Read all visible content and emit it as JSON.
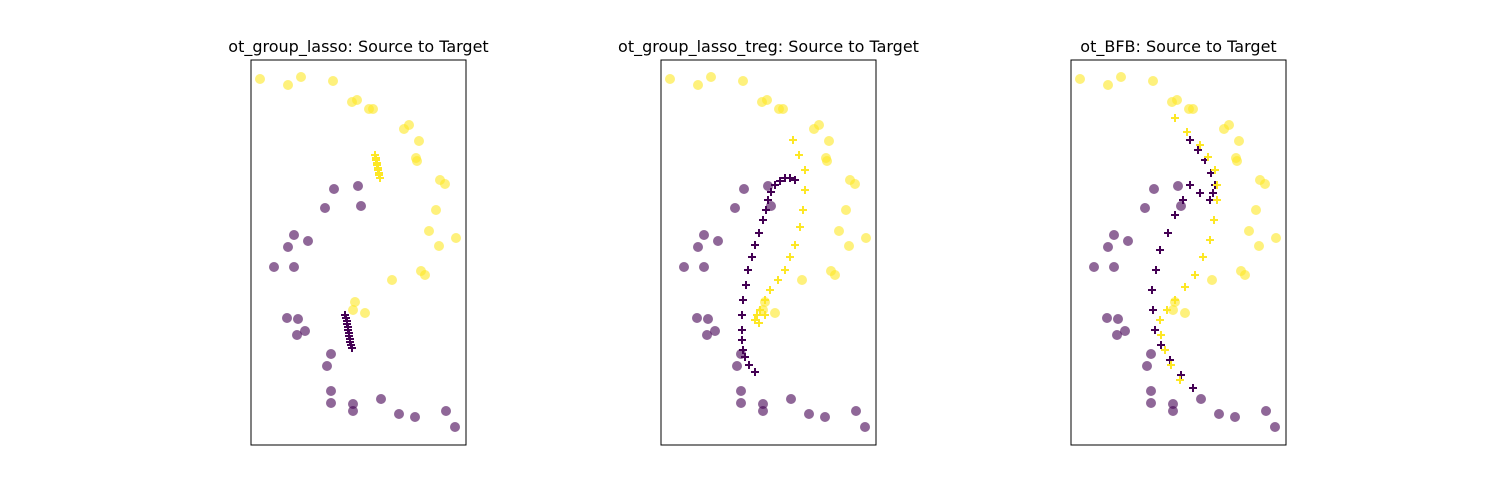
{
  "chart_data": [
    {
      "type": "scatter",
      "title": "ot_group_lasso: Source to Target",
      "xlim": [
        0,
        215
      ],
      "ylim": [
        0,
        385
      ],
      "series": [
        {
          "color": "#440154",
          "marker": "o",
          "alpha": 0.6,
          "x": [
            83,
            74,
            110,
            107,
            43,
            57,
            37,
            23,
            43,
            36,
            47,
            54,
            46,
            80,
            76,
            80,
            80,
            102,
            102,
            130,
            148,
            164,
            195,
            204
          ],
          "values": [
            256,
            237,
            239,
            259,
            210,
            204,
            198,
            178,
            178,
            127,
            126,
            114,
            110,
            91,
            79,
            54,
            42,
            41,
            34,
            46,
            31,
            28,
            34,
            18
          ]
        },
        {
          "color": "#fde725",
          "marker": "o",
          "alpha": 0.6,
          "x": [
            9,
            37,
            50,
            82,
            101,
            106,
            118,
            122,
            153,
            158,
            168,
            165,
            166,
            189,
            194,
            185,
            178,
            205,
            188,
            170,
            174,
            141,
            104,
            102,
            114
          ],
          "values": [
            366,
            360,
            368,
            364,
            343,
            345,
            336,
            336,
            316,
            320,
            304,
            287,
            284,
            265,
            261,
            235,
            214,
            207,
            199,
            174,
            170,
            165,
            143,
            135,
            132
          ]
        },
        {
          "color": "#440154",
          "marker": "+",
          "alpha": 1,
          "x": [
            94,
            95,
            96,
            96,
            97,
            97,
            98,
            98,
            99,
            99,
            100,
            101
          ],
          "values": [
            130,
            127,
            124,
            121,
            118,
            115,
            112,
            109,
            106,
            103,
            100,
            97
          ]
        },
        {
          "color": "#fde725",
          "marker": "+",
          "alpha": 1,
          "x": [
            124,
            125,
            125,
            126,
            126,
            127,
            127,
            128,
            128,
            129
          ],
          "values": [
            290,
            287,
            285,
            282,
            280,
            277,
            275,
            272,
            270,
            267
          ]
        }
      ]
    },
    {
      "type": "scatter",
      "title": "ot_group_lasso_treg: Source to Target",
      "xlim": [
        0,
        215
      ],
      "ylim": [
        0,
        385
      ],
      "series": [
        {
          "color": "#440154",
          "marker": "o",
          "alpha": 0.6,
          "x": [
            83,
            74,
            110,
            107,
            43,
            57,
            37,
            23,
            43,
            36,
            47,
            54,
            46,
            80,
            76,
            80,
            80,
            102,
            102,
            130,
            148,
            164,
            195,
            204
          ],
          "values": [
            256,
            237,
            239,
            259,
            210,
            204,
            198,
            178,
            178,
            127,
            126,
            114,
            110,
            91,
            79,
            54,
            42,
            41,
            34,
            46,
            31,
            28,
            34,
            18
          ]
        },
        {
          "color": "#fde725",
          "marker": "o",
          "alpha": 0.6,
          "x": [
            9,
            37,
            50,
            82,
            101,
            106,
            118,
            122,
            153,
            158,
            168,
            165,
            166,
            189,
            194,
            185,
            178,
            205,
            188,
            170,
            174,
            141,
            104,
            102,
            114
          ],
          "values": [
            366,
            360,
            368,
            364,
            343,
            345,
            336,
            336,
            316,
            320,
            304,
            287,
            284,
            265,
            261,
            235,
            214,
            207,
            199,
            174,
            170,
            165,
            143,
            135,
            132
          ]
        },
        {
          "color": "#440154",
          "marker": "+",
          "alpha": 1,
          "x": [
            134,
            129,
            124,
            119,
            114,
            110,
            107,
            105,
            102,
            98,
            94,
            91,
            87,
            85,
            82,
            81,
            81,
            81,
            82,
            84,
            88,
            94
          ],
          "values": [
            265,
            267,
            267,
            264,
            260,
            253,
            245,
            235,
            225,
            212,
            200,
            188,
            175,
            160,
            145,
            130,
            115,
            105,
            95,
            88,
            80,
            73
          ]
        },
        {
          "color": "#fde725",
          "marker": "+",
          "alpha": 1,
          "x": [
            132,
            138,
            144,
            144,
            142,
            139,
            134,
            129,
            124,
            117,
            109,
            104,
            99,
            96,
            94,
            98,
            104
          ],
          "values": [
            305,
            290,
            275,
            255,
            235,
            218,
            200,
            188,
            175,
            165,
            155,
            145,
            135,
            130,
            125,
            122,
            130
          ]
        }
      ]
    },
    {
      "type": "scatter",
      "title": "ot_BFB: Source to Target",
      "xlim": [
        0,
        215
      ],
      "ylim": [
        0,
        385
      ],
      "series": [
        {
          "color": "#440154",
          "marker": "o",
          "alpha": 0.6,
          "x": [
            83,
            74,
            110,
            107,
            43,
            57,
            37,
            23,
            43,
            36,
            47,
            54,
            46,
            80,
            76,
            80,
            80,
            102,
            102,
            130,
            148,
            164,
            195,
            204
          ],
          "values": [
            256,
            237,
            239,
            259,
            210,
            204,
            198,
            178,
            178,
            127,
            126,
            114,
            110,
            91,
            79,
            54,
            42,
            41,
            34,
            46,
            31,
            28,
            34,
            18
          ]
        },
        {
          "color": "#fde725",
          "marker": "o",
          "alpha": 0.6,
          "x": [
            9,
            37,
            50,
            82,
            101,
            106,
            118,
            122,
            153,
            158,
            168,
            165,
            166,
            189,
            194,
            185,
            178,
            205,
            188,
            170,
            174,
            141,
            104,
            102,
            114
          ],
          "values": [
            366,
            360,
            368,
            364,
            343,
            345,
            336,
            336,
            316,
            320,
            304,
            287,
            284,
            265,
            261,
            235,
            214,
            207,
            199,
            174,
            170,
            165,
            143,
            135,
            132
          ]
        },
        {
          "color": "#440154",
          "marker": "+",
          "alpha": 1,
          "x": [
            119,
            127,
            134,
            140,
            144,
            142,
            139,
            129,
            119,
            112,
            104,
            97,
            89,
            85,
            81,
            82,
            84,
            90,
            99,
            110,
            122
          ],
          "values": [
            305,
            295,
            285,
            272,
            260,
            252,
            245,
            252,
            260,
            245,
            230,
            212,
            195,
            175,
            155,
            135,
            115,
            100,
            85,
            70,
            57
          ]
        },
        {
          "color": "#fde725",
          "marker": "+",
          "alpha": 1,
          "x": [
            104,
            116,
            129,
            137,
            144,
            146,
            146,
            143,
            139,
            132,
            124,
            114,
            104,
            96,
            89,
            90,
            94,
            100,
            109
          ],
          "values": [
            327,
            313,
            300,
            288,
            275,
            260,
            245,
            225,
            205,
            188,
            170,
            158,
            145,
            135,
            125,
            110,
            95,
            80,
            65
          ]
        }
      ]
    }
  ]
}
